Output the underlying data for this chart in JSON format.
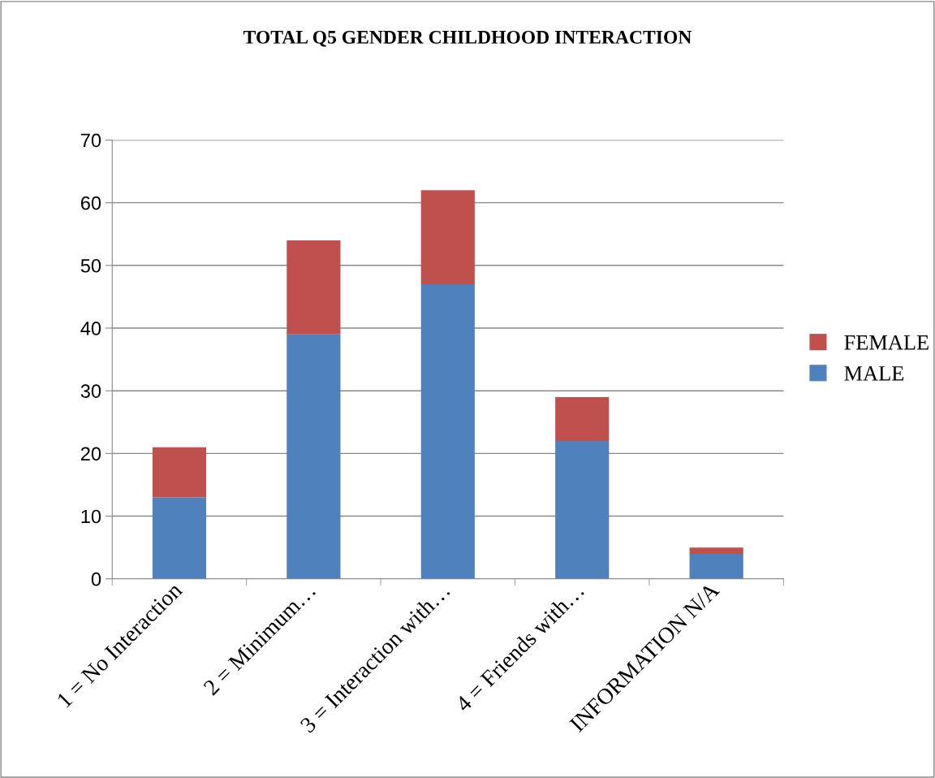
{
  "chart_data": {
    "type": "bar",
    "title": "TOTAL Q5 GENDER CHILDHOOD INTERACTION",
    "categories": [
      "1 = No Interaction",
      "2 = Minimum…",
      "3 = Interaction with…",
      "4 = Friends with…",
      "INFORMATION N/A"
    ],
    "stacked": true,
    "series": [
      {
        "name": "MALE",
        "color": "#4f81bd",
        "values": [
          13,
          39,
          47,
          22,
          4
        ]
      },
      {
        "name": "FEMALE",
        "color": "#c0504d",
        "values": [
          8,
          15,
          15,
          7,
          1
        ]
      }
    ],
    "ylim": [
      0,
      70
    ],
    "yticks": [
      0,
      10,
      20,
      30,
      40,
      50,
      60,
      70
    ],
    "grid": "y",
    "legend": "right"
  }
}
